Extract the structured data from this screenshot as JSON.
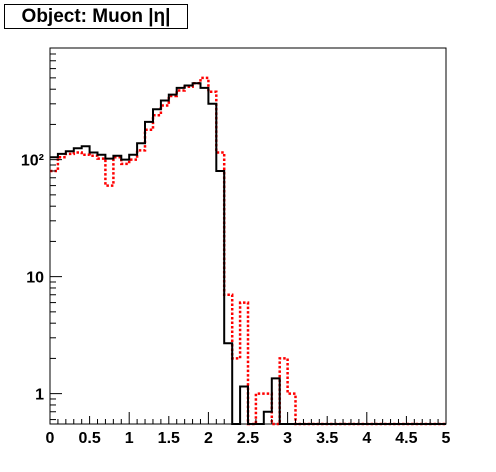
{
  "chart_data": {
    "type": "histogram",
    "title": "Object: Muon |η|",
    "xlabel": "",
    "ylabel": "",
    "xlim": [
      0,
      5
    ],
    "ylim": [
      0.55,
      900
    ],
    "yscale": "log",
    "grid": false,
    "bin_width": 0.1,
    "x_ticks": [
      "0",
      "0.5",
      "1",
      "1.5",
      "2",
      "2.5",
      "3",
      "3.5",
      "4",
      "4.5",
      "5"
    ],
    "y_ticks": [
      {
        "value": 1,
        "label": "1"
      },
      {
        "value": 10,
        "label": "10"
      },
      {
        "value": 100,
        "label": "10²"
      }
    ],
    "series": [
      {
        "style": "solid",
        "color": "#000000",
        "values": [
          105,
          112,
          118,
          125,
          130,
          115,
          110,
          102,
          108,
          100,
          110,
          138,
          210,
          270,
          320,
          360,
          410,
          430,
          450,
          410,
          300,
          80,
          2.7,
          0.4,
          1.15,
          0.4,
          0.4,
          0.7,
          1.35,
          0.4,
          0.4,
          0.4,
          0.4,
          0.4,
          0.4,
          0.4,
          0.4,
          0.4,
          0.4,
          0.4,
          0.4,
          0.4,
          0.4,
          0.4,
          0.4,
          0.4,
          0.4,
          0.4,
          0.4,
          0.4
        ]
      },
      {
        "style": "dotted",
        "color": "#ff0000",
        "values": [
          80,
          105,
          112,
          115,
          110,
          108,
          102,
          60,
          105,
          92,
          100,
          120,
          180,
          240,
          290,
          350,
          390,
          420,
          450,
          500,
          380,
          115,
          7,
          2,
          6,
          0.4,
          1,
          1,
          0.55,
          2,
          1,
          0.55,
          0.55,
          0.55,
          0.55,
          0.55,
          0.55,
          0.55,
          0.55,
          0.55,
          0.55,
          0.55,
          0.55,
          0.55,
          0.55,
          0.55,
          0.55,
          0.55,
          0.55,
          0.55
        ]
      }
    ]
  }
}
